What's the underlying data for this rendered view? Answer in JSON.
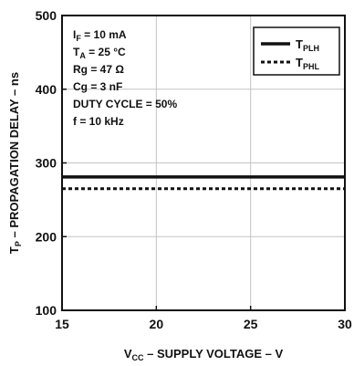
{
  "chart_data": {
    "type": "line",
    "xlabel": {
      "main": "V",
      "sub": "CC",
      "rest": " – SUPPLY VOLTAGE – V"
    },
    "ylabel": {
      "main": "T",
      "sub": "P",
      "rest": " – PROPAGATION DELAY – ns"
    },
    "xlim": [
      15,
      30
    ],
    "ylim": [
      100,
      500
    ],
    "xticks": [
      15,
      20,
      25,
      30
    ],
    "yticks": [
      100,
      200,
      300,
      400,
      500
    ],
    "grid": true,
    "legend_position": "top-right",
    "conditions": [
      {
        "main": "I",
        "sub": "F",
        "rest": " = 10 mA"
      },
      {
        "main": "T",
        "sub": "A",
        "rest": " = 25 °C"
      },
      {
        "main": "Rg = 47 Ω",
        "sub": "",
        "rest": ""
      },
      {
        "main": "Cg = 3 nF",
        "sub": "",
        "rest": ""
      },
      {
        "main": "DUTY CYCLE = 50%",
        "sub": "",
        "rest": ""
      },
      {
        "main": "f = 10 kHz",
        "sub": "",
        "rest": ""
      }
    ],
    "series": [
      {
        "name": "T",
        "name_sub": "PLH",
        "style": "solid",
        "x": [
          15,
          30
        ],
        "values": [
          281,
          281
        ]
      },
      {
        "name": "T",
        "name_sub": "PHL",
        "style": "dotted",
        "x": [
          15,
          30
        ],
        "values": [
          265,
          265
        ]
      }
    ]
  }
}
